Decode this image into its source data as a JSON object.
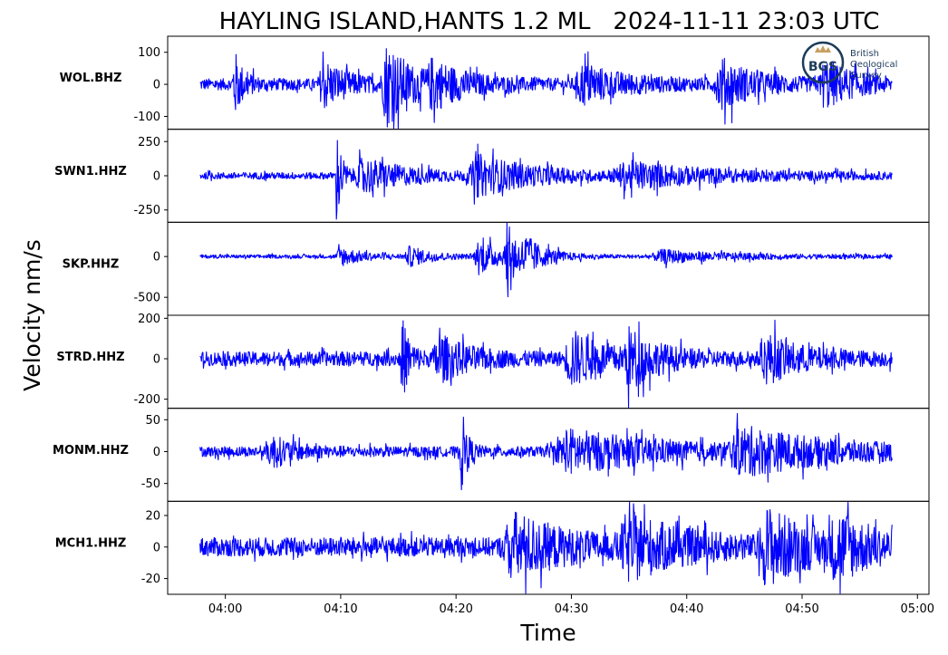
{
  "chart_data": {
    "type": "line",
    "title": "HAYLING ISLAND,HANTS 1.2 ML   2024-11-11 23:03 UTC",
    "xlabel": "Time",
    "ylabel": "Velocity nm/s",
    "x_ticks": [
      "04:00",
      "04:10",
      "04:20",
      "04:30",
      "04:40",
      "04:50",
      "05:00"
    ],
    "x_range_minutes": [
      235,
      301
    ],
    "data_span_minutes": [
      237.8,
      297.8
    ],
    "trace_color": "#0000ff",
    "logo": {
      "text_lines": [
        "British",
        "Geological",
        "Survey"
      ],
      "badge": "BGS",
      "color": "#1d3c5a"
    },
    "panels": [
      {
        "station": "WOL.BHZ",
        "ylim": [
          -140,
          150
        ],
        "yticks": [
          100,
          0,
          -100
        ],
        "noise": 18,
        "bursts": [
          {
            "t": 240.8,
            "amp": 95,
            "w": 0.8
          },
          {
            "t": 248.5,
            "amp": 70,
            "w": 2.0
          },
          {
            "t": 254,
            "amp": 120,
            "w": 2.2
          },
          {
            "t": 258,
            "amp": 55,
            "w": 3.0
          },
          {
            "t": 271,
            "amp": 55,
            "w": 3.5
          },
          {
            "t": 283,
            "amp": 70,
            "w": 3.0
          },
          {
            "t": 292,
            "amp": 65,
            "w": 2.5
          }
        ]
      },
      {
        "station": "SWN1.HHZ",
        "ylim": [
          -340,
          340
        ],
        "yticks": [
          250,
          0,
          -250
        ],
        "noise": 25,
        "bursts": [
          {
            "t": 249.7,
            "amp": 300,
            "w": 0.5
          },
          {
            "t": 252,
            "amp": 120,
            "w": 4.0
          },
          {
            "t": 262,
            "amp": 130,
            "w": 5.0
          },
          {
            "t": 275,
            "amp": 80,
            "w": 8.0
          }
        ]
      },
      {
        "station": "SKP.HHZ",
        "ylim": [
          -720,
          420
        ],
        "yticks": [
          0,
          -500
        ],
        "noise": 22,
        "bursts": [
          {
            "t": 250,
            "amp": 110,
            "w": 2.0
          },
          {
            "t": 256,
            "amp": 110,
            "w": 2.0
          },
          {
            "t": 262,
            "amp": 200,
            "w": 2.2
          },
          {
            "t": 264.5,
            "amp": 600,
            "w": 0.6
          },
          {
            "t": 266,
            "amp": 200,
            "w": 1.8
          },
          {
            "t": 278,
            "amp": 70,
            "w": 6.0
          }
        ]
      },
      {
        "station": "STRD.HHZ",
        "ylim": [
          -245,
          215
        ],
        "yticks": [
          200,
          0,
          -200
        ],
        "noise": 35,
        "bursts": [
          {
            "t": 255.3,
            "amp": 190,
            "w": 0.7
          },
          {
            "t": 258.5,
            "amp": 100,
            "w": 2.5
          },
          {
            "t": 270,
            "amp": 120,
            "w": 3.0
          },
          {
            "t": 275,
            "amp": 110,
            "w": 2.5
          },
          {
            "t": 287,
            "amp": 100,
            "w": 3.0
          }
        ]
      },
      {
        "station": "MONM.HHZ",
        "ylim": [
          -78,
          68
        ],
        "yticks": [
          50,
          0,
          -50
        ],
        "noise": 8,
        "bursts": [
          {
            "t": 244,
            "amp": 22,
            "w": 2.0
          },
          {
            "t": 260.5,
            "amp": 62,
            "w": 0.5
          },
          {
            "t": 270,
            "amp": 30,
            "w": 8.0
          },
          {
            "t": 285,
            "amp": 30,
            "w": 8.0
          }
        ]
      },
      {
        "station": "MCH1.HHZ",
        "ylim": [
          -30,
          29
        ],
        "yticks": [
          20,
          0,
          -20
        ],
        "noise": 6,
        "bursts": [
          {
            "t": 265,
            "amp": 18,
            "w": 4.5
          },
          {
            "t": 275,
            "amp": 16,
            "w": 5.0
          },
          {
            "t": 287,
            "amp": 20,
            "w": 4.0
          },
          {
            "t": 293,
            "amp": 16,
            "w": 3.0
          }
        ]
      }
    ]
  }
}
